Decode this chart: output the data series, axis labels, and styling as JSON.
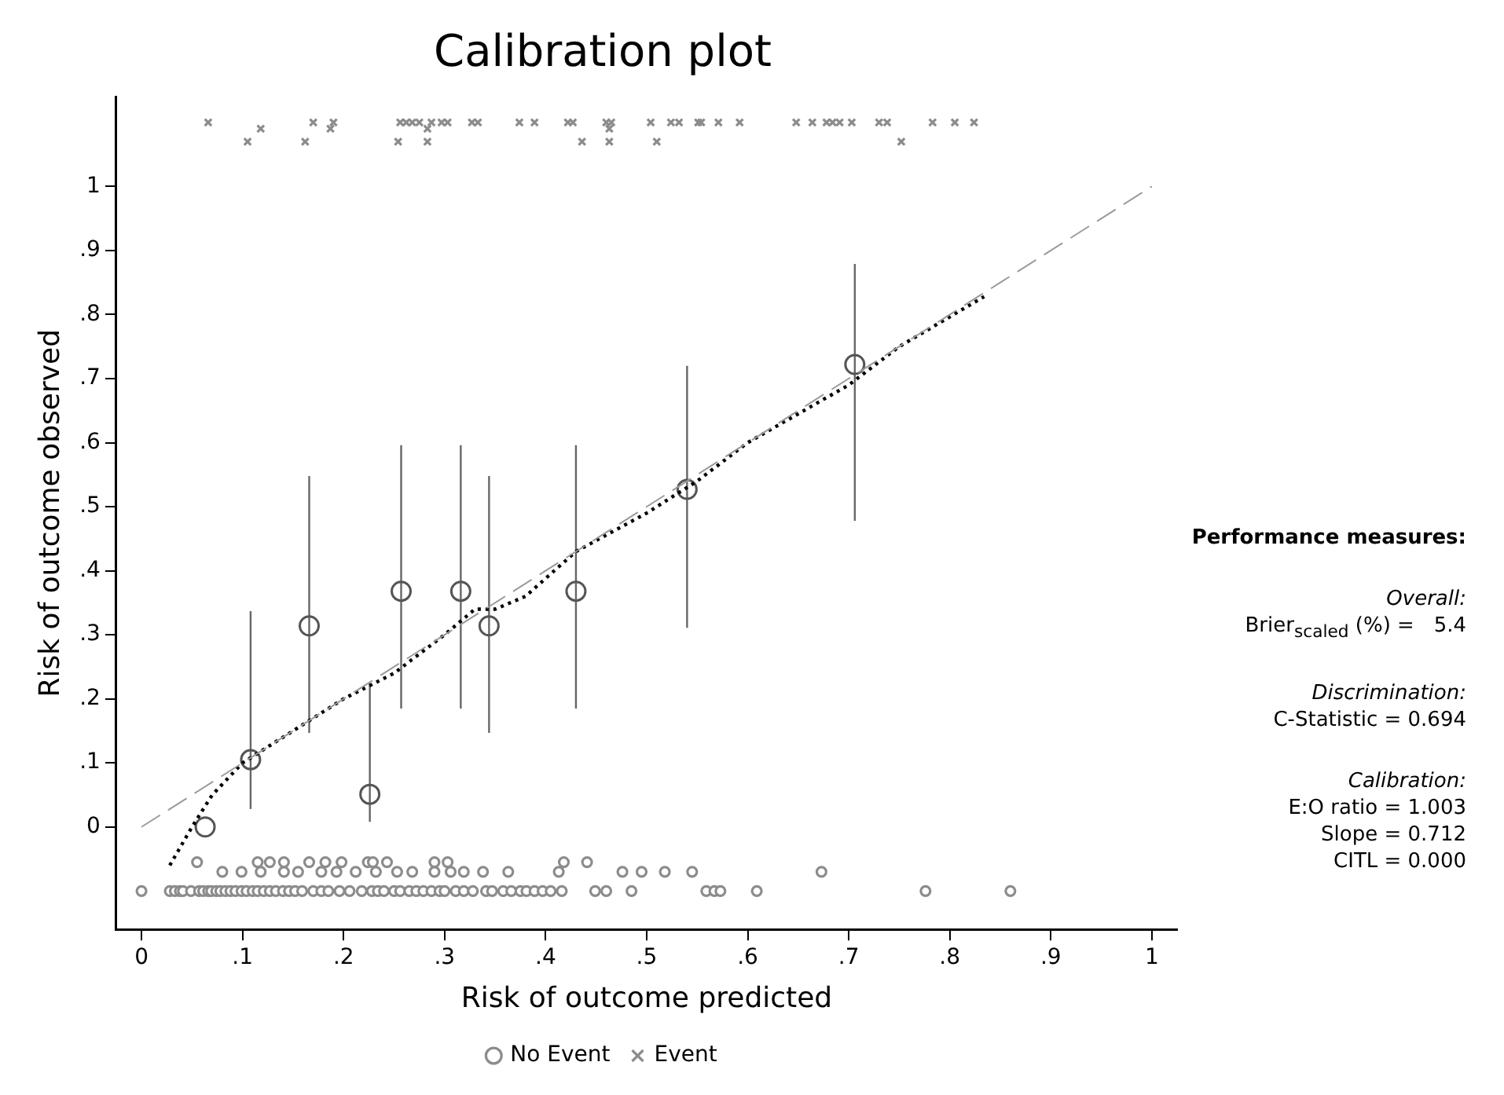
{
  "chart_data": {
    "type": "scatter",
    "title": "Calibration plot",
    "xlabel": "Risk of outcome predicted",
    "ylabel": "Risk of outcome observed",
    "xlim": [
      -0.025,
      1.025
    ],
    "ylim": [
      -0.16,
      1.14
    ],
    "xticks": [
      0,
      {
        "value": 0.1,
        "label": ".1"
      },
      {
        "value": 0.2,
        "label": ".2"
      },
      {
        "value": 0.3,
        "label": ".3"
      },
      {
        "value": 0.4,
        "label": ".4"
      },
      {
        "value": 0.5,
        "label": ".5"
      },
      {
        "value": 0.6,
        "label": ".6"
      },
      {
        "value": 0.7,
        "label": ".7"
      },
      {
        "value": 0.8,
        "label": ".8"
      },
      {
        "value": 0.9,
        "label": ".9"
      },
      1
    ],
    "yticks": [
      0,
      {
        "value": 0.1,
        "label": ".1"
      },
      {
        "value": 0.2,
        "label": ".2"
      },
      {
        "value": 0.3,
        "label": ".3"
      },
      {
        "value": 0.4,
        "label": ".4"
      },
      {
        "value": 0.5,
        "label": ".5"
      },
      {
        "value": 0.6,
        "label": ".6"
      },
      {
        "value": 0.7,
        "label": ".7"
      },
      {
        "value": 0.8,
        "label": ".8"
      },
      {
        "value": 0.9,
        "label": ".9"
      },
      1
    ],
    "grid": false,
    "legend": "bottom",
    "series": [
      {
        "name": "No Event",
        "type": "scatter",
        "marker": "circle",
        "color": "#8c8c8c",
        "x": [
          0.0,
          0.028,
          0.033,
          0.038,
          0.041,
          0.049,
          0.057,
          0.061,
          0.066,
          0.069,
          0.074,
          0.078,
          0.083,
          0.088,
          0.093,
          0.099,
          0.104,
          0.11,
          0.115,
          0.121,
          0.127,
          0.133,
          0.14,
          0.146,
          0.152,
          0.159,
          0.17,
          0.178,
          0.185,
          0.196,
          0.206,
          0.218,
          0.228,
          0.234,
          0.24,
          0.25,
          0.256,
          0.265,
          0.272,
          0.279,
          0.287,
          0.295,
          0.3,
          0.311,
          0.319,
          0.328,
          0.341,
          0.347,
          0.358,
          0.366,
          0.375,
          0.381,
          0.389,
          0.397,
          0.405,
          0.416,
          0.449,
          0.46,
          0.485,
          0.559,
          0.567,
          0.573,
          0.609,
          0.776,
          0.86,
          0.08,
          0.099,
          0.118,
          0.141,
          0.155,
          0.178,
          0.193,
          0.212,
          0.232,
          0.253,
          0.268,
          0.29,
          0.306,
          0.319,
          0.338,
          0.363,
          0.413,
          0.476,
          0.495,
          0.518,
          0.545,
          0.673,
          0.055,
          0.115,
          0.127,
          0.141,
          0.166,
          0.182,
          0.198,
          0.224,
          0.229,
          0.243,
          0.29,
          0.303,
          0.418,
          0.441
        ],
        "values": [
          -0.1,
          -0.1,
          -0.1,
          -0.1,
          -0.1,
          -0.1,
          -0.1,
          -0.1,
          -0.1,
          -0.1,
          -0.1,
          -0.1,
          -0.1,
          -0.1,
          -0.1,
          -0.1,
          -0.1,
          -0.1,
          -0.1,
          -0.1,
          -0.1,
          -0.1,
          -0.1,
          -0.1,
          -0.1,
          -0.1,
          -0.1,
          -0.1,
          -0.1,
          -0.1,
          -0.1,
          -0.1,
          -0.1,
          -0.1,
          -0.1,
          -0.1,
          -0.1,
          -0.1,
          -0.1,
          -0.1,
          -0.1,
          -0.1,
          -0.1,
          -0.1,
          -0.1,
          -0.1,
          -0.1,
          -0.1,
          -0.1,
          -0.1,
          -0.1,
          -0.1,
          -0.1,
          -0.1,
          -0.1,
          -0.1,
          -0.1,
          -0.1,
          -0.1,
          -0.1,
          -0.1,
          -0.1,
          -0.1,
          -0.1,
          -0.1,
          -0.07,
          -0.07,
          -0.07,
          -0.07,
          -0.07,
          -0.07,
          -0.07,
          -0.07,
          -0.07,
          -0.07,
          -0.07,
          -0.07,
          -0.07,
          -0.07,
          -0.07,
          -0.07,
          -0.07,
          -0.07,
          -0.07,
          -0.07,
          -0.07,
          -0.07,
          -0.055,
          -0.055,
          -0.055,
          -0.055,
          -0.055,
          -0.055,
          -0.055,
          -0.055,
          -0.055,
          -0.055,
          -0.055,
          -0.055,
          -0.055,
          -0.055
        ]
      },
      {
        "name": "Event",
        "type": "scatter",
        "marker": "cross",
        "color": "#8c8c8c",
        "x": [
          0.066,
          0.17,
          0.19,
          0.256,
          0.262,
          0.268,
          0.275,
          0.287,
          0.297,
          0.303,
          0.327,
          0.333,
          0.374,
          0.389,
          0.422,
          0.427,
          0.46,
          0.465,
          0.504,
          0.524,
          0.532,
          0.551,
          0.554,
          0.571,
          0.592,
          0.648,
          0.664,
          0.678,
          0.684,
          0.691,
          0.703,
          0.73,
          0.738,
          0.783,
          0.805,
          0.824,
          0.118,
          0.187,
          0.283,
          0.463,
          0.105,
          0.162,
          0.254,
          0.283,
          0.436,
          0.463,
          0.51,
          0.752
        ],
        "values": [
          1.1,
          1.1,
          1.1,
          1.1,
          1.1,
          1.1,
          1.1,
          1.1,
          1.1,
          1.1,
          1.1,
          1.1,
          1.1,
          1.1,
          1.1,
          1.1,
          1.1,
          1.1,
          1.1,
          1.1,
          1.1,
          1.1,
          1.1,
          1.1,
          1.1,
          1.1,
          1.1,
          1.1,
          1.1,
          1.1,
          1.1,
          1.1,
          1.1,
          1.1,
          1.1,
          1.1,
          1.09,
          1.09,
          1.09,
          1.09,
          1.07,
          1.07,
          1.07,
          1.07,
          1.07,
          1.07,
          1.07,
          1.07
        ]
      },
      {
        "type": "line",
        "line_style": "dashed",
        "marker": "none",
        "color": "#9a9a9a",
        "x": [
          0,
          1
        ],
        "values": [
          0,
          1
        ]
      },
      {
        "type": "line",
        "line_style": "dotted",
        "marker": "none",
        "color": "#000000",
        "x": [
          0.028,
          0.05,
          0.07,
          0.1,
          0.13,
          0.17,
          0.2,
          0.25,
          0.3,
          0.33,
          0.35,
          0.38,
          0.43,
          0.5,
          0.55,
          0.6,
          0.7,
          0.75,
          0.834
        ],
        "values": [
          -0.06,
          0.0,
          0.05,
          0.1,
          0.13,
          0.17,
          0.2,
          0.24,
          0.3,
          0.34,
          0.34,
          0.36,
          0.43,
          0.49,
          0.54,
          0.6,
          0.69,
          0.75,
          0.828
        ]
      },
      {
        "type": "scatter",
        "marker": "circle",
        "color": "#555555",
        "x": [
          0.063,
          0.108,
          0.166,
          0.226,
          0.257,
          0.316,
          0.344,
          0.43,
          0.54,
          0.706
        ],
        "values": [
          0,
          0.105,
          0.314,
          0.051,
          0.368,
          0.368,
          0.314,
          0.368,
          0.527,
          0.722
        ],
        "errors": [
          null,
          [
            0.028,
            0.337
          ],
          [
            0.147,
            0.548
          ],
          [
            0.008,
            0.224
          ],
          [
            0.185,
            0.596
          ],
          [
            0.185,
            0.596
          ],
          [
            0.147,
            0.548
          ],
          [
            0.185,
            0.596
          ],
          [
            0.311,
            0.72
          ],
          [
            0.478,
            0.879
          ]
        ]
      }
    ],
    "annotations": [
      "Performance measures:",
      "Overall:",
      "Brier$_{scaled}$ (%) =   5.4",
      "Discrimination:",
      "C-Statistic = 0.694",
      "Calibration:",
      "E:O ratio = 1.003",
      "Slope = 0.712",
      "CITL = 0.000"
    ]
  }
}
